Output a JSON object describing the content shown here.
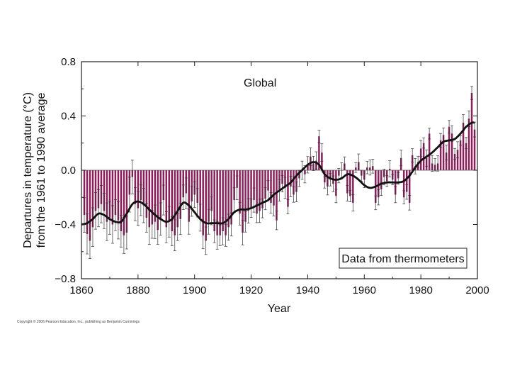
{
  "chart_data": {
    "type": "bar",
    "title": "Global",
    "xlabel": "Year",
    "ylabel": "Departures in temperature (°C)",
    "ylabel_line2": "from the 1961 to 1990 average",
    "xlim": [
      1860,
      2000
    ],
    "ylim": [
      -0.8,
      0.8
    ],
    "xticks": [
      1860,
      1880,
      1900,
      1920,
      1940,
      1960,
      1980,
      2000
    ],
    "yticks": [
      0.8,
      0.4,
      0.0,
      -0.4,
      -0.8
    ],
    "ytick_labels": [
      "0.8",
      "0.4",
      "0.0",
      "−0.4",
      "−0.8"
    ],
    "legend": "Data from thermometers",
    "bar_color": "#8a1f5c",
    "smooth_color": "#111111",
    "years": [
      1861,
      1862,
      1863,
      1864,
      1865,
      1866,
      1867,
      1868,
      1869,
      1870,
      1871,
      1872,
      1873,
      1874,
      1875,
      1876,
      1877,
      1878,
      1879,
      1880,
      1881,
      1882,
      1883,
      1884,
      1885,
      1886,
      1887,
      1888,
      1889,
      1890,
      1891,
      1892,
      1893,
      1894,
      1895,
      1896,
      1897,
      1898,
      1899,
      1900,
      1901,
      1902,
      1903,
      1904,
      1905,
      1906,
      1907,
      1908,
      1909,
      1910,
      1911,
      1912,
      1913,
      1914,
      1915,
      1916,
      1917,
      1918,
      1919,
      1920,
      1921,
      1922,
      1923,
      1924,
      1925,
      1926,
      1927,
      1928,
      1929,
      1930,
      1931,
      1932,
      1933,
      1934,
      1935,
      1936,
      1937,
      1938,
      1939,
      1940,
      1941,
      1942,
      1943,
      1944,
      1945,
      1946,
      1947,
      1948,
      1949,
      1950,
      1951,
      1952,
      1953,
      1954,
      1955,
      1956,
      1957,
      1958,
      1959,
      1960,
      1961,
      1962,
      1963,
      1964,
      1965,
      1966,
      1967,
      1968,
      1969,
      1970,
      1971,
      1972,
      1973,
      1974,
      1975,
      1976,
      1977,
      1978,
      1979,
      1980,
      1981,
      1982,
      1983,
      1984,
      1985,
      1986,
      1987,
      1988,
      1989,
      1990,
      1991,
      1992,
      1993,
      1994,
      1995,
      1996,
      1997,
      1998,
      1999
    ],
    "values": [
      -0.33,
      -0.47,
      -0.52,
      -0.42,
      -0.3,
      -0.28,
      -0.25,
      -0.3,
      -0.38,
      -0.35,
      -0.4,
      -0.33,
      -0.37,
      -0.45,
      -0.48,
      -0.46,
      -0.18,
      -0.05,
      -0.25,
      -0.28,
      -0.22,
      -0.26,
      -0.35,
      -0.42,
      -0.4,
      -0.38,
      -0.44,
      -0.36,
      -0.22,
      -0.42,
      -0.38,
      -0.45,
      -0.48,
      -0.42,
      -0.36,
      -0.2,
      -0.17,
      -0.38,
      -0.23,
      -0.18,
      -0.24,
      -0.35,
      -0.48,
      -0.52,
      -0.38,
      -0.3,
      -0.45,
      -0.48,
      -0.48,
      -0.45,
      -0.48,
      -0.42,
      -0.4,
      -0.22,
      -0.13,
      -0.32,
      -0.46,
      -0.38,
      -0.3,
      -0.28,
      -0.22,
      -0.32,
      -0.3,
      -0.28,
      -0.21,
      -0.15,
      -0.24,
      -0.26,
      -0.37,
      -0.15,
      -0.1,
      -0.13,
      -0.27,
      -0.12,
      -0.18,
      -0.16,
      -0.06,
      0.0,
      -0.03,
      0.04,
      0.1,
      0.05,
      0.07,
      0.25,
      0.13,
      -0.09,
      -0.12,
      -0.07,
      -0.1,
      -0.19,
      -0.04,
      0.0,
      0.05,
      -0.17,
      -0.19,
      -0.24,
      0.02,
      0.06,
      -0.04,
      -0.07,
      0.02,
      0.02,
      0.03,
      -0.24,
      -0.2,
      -0.14,
      -0.05,
      -0.08,
      0.01,
      -0.07,
      -0.18,
      -0.06,
      0.09,
      -0.2,
      -0.16,
      -0.24,
      0.11,
      0.03,
      0.06,
      0.16,
      0.2,
      0.09,
      0.27,
      0.05,
      0.04,
      0.05,
      0.22,
      0.26,
      0.13,
      0.32,
      0.27,
      0.12,
      0.15,
      0.22,
      0.35,
      0.2,
      0.38,
      0.57,
      0.3
    ],
    "smoothed": [
      {
        "x": 1860,
        "y": -0.4
      },
      {
        "x": 1862,
        "y": -0.39
      },
      {
        "x": 1864,
        "y": -0.36
      },
      {
        "x": 1866,
        "y": -0.32
      },
      {
        "x": 1868,
        "y": -0.33
      },
      {
        "x": 1870,
        "y": -0.36
      },
      {
        "x": 1872,
        "y": -0.38
      },
      {
        "x": 1874,
        "y": -0.38
      },
      {
        "x": 1876,
        "y": -0.32
      },
      {
        "x": 1878,
        "y": -0.25
      },
      {
        "x": 1880,
        "y": -0.23
      },
      {
        "x": 1882,
        "y": -0.25
      },
      {
        "x": 1884,
        "y": -0.29
      },
      {
        "x": 1886,
        "y": -0.33
      },
      {
        "x": 1888,
        "y": -0.36
      },
      {
        "x": 1890,
        "y": -0.38
      },
      {
        "x": 1892,
        "y": -0.36
      },
      {
        "x": 1894,
        "y": -0.3
      },
      {
        "x": 1896,
        "y": -0.24
      },
      {
        "x": 1898,
        "y": -0.26
      },
      {
        "x": 1900,
        "y": -0.31
      },
      {
        "x": 1902,
        "y": -0.36
      },
      {
        "x": 1904,
        "y": -0.39
      },
      {
        "x": 1906,
        "y": -0.39
      },
      {
        "x": 1908,
        "y": -0.39
      },
      {
        "x": 1910,
        "y": -0.39
      },
      {
        "x": 1912,
        "y": -0.36
      },
      {
        "x": 1914,
        "y": -0.31
      },
      {
        "x": 1916,
        "y": -0.29
      },
      {
        "x": 1918,
        "y": -0.29
      },
      {
        "x": 1920,
        "y": -0.28
      },
      {
        "x": 1922,
        "y": -0.26
      },
      {
        "x": 1924,
        "y": -0.24
      },
      {
        "x": 1926,
        "y": -0.22
      },
      {
        "x": 1928,
        "y": -0.18
      },
      {
        "x": 1930,
        "y": -0.15
      },
      {
        "x": 1932,
        "y": -0.12
      },
      {
        "x": 1934,
        "y": -0.09
      },
      {
        "x": 1936,
        "y": -0.04
      },
      {
        "x": 1938,
        "y": 0.0
      },
      {
        "x": 1940,
        "y": 0.04
      },
      {
        "x": 1942,
        "y": 0.06
      },
      {
        "x": 1944,
        "y": 0.04
      },
      {
        "x": 1946,
        "y": -0.03
      },
      {
        "x": 1948,
        "y": -0.06
      },
      {
        "x": 1950,
        "y": -0.07
      },
      {
        "x": 1952,
        "y": -0.06
      },
      {
        "x": 1954,
        "y": -0.03
      },
      {
        "x": 1956,
        "y": -0.04
      },
      {
        "x": 1958,
        "y": -0.07
      },
      {
        "x": 1960,
        "y": -0.11
      },
      {
        "x": 1962,
        "y": -0.13
      },
      {
        "x": 1964,
        "y": -0.12
      },
      {
        "x": 1966,
        "y": -0.1
      },
      {
        "x": 1968,
        "y": -0.09
      },
      {
        "x": 1970,
        "y": -0.09
      },
      {
        "x": 1972,
        "y": -0.09
      },
      {
        "x": 1974,
        "y": -0.08
      },
      {
        "x": 1976,
        "y": -0.04
      },
      {
        "x": 1978,
        "y": 0.02
      },
      {
        "x": 1980,
        "y": 0.07
      },
      {
        "x": 1982,
        "y": 0.1
      },
      {
        "x": 1984,
        "y": 0.13
      },
      {
        "x": 1986,
        "y": 0.17
      },
      {
        "x": 1988,
        "y": 0.21
      },
      {
        "x": 1990,
        "y": 0.22
      },
      {
        "x": 1992,
        "y": 0.23
      },
      {
        "x": 1994,
        "y": 0.27
      },
      {
        "x": 1996,
        "y": 0.32
      },
      {
        "x": 1998,
        "y": 0.35
      },
      {
        "x": 1999,
        "y": 0.35
      }
    ]
  },
  "copyright": "Copyright © 2006 Pearson Education, Inc., publishing as Benjamin Cummings"
}
